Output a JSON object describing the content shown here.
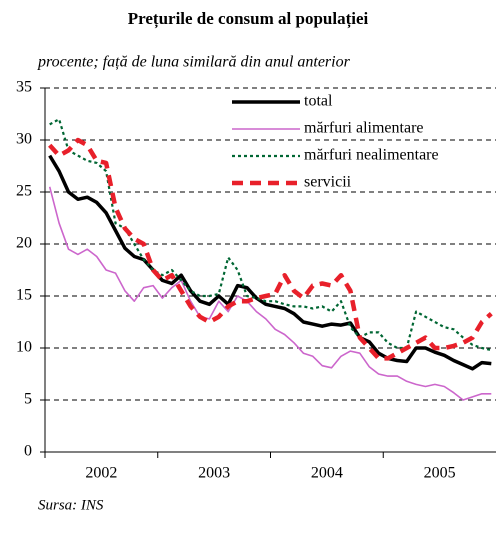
{
  "chart_data": {
    "type": "line",
    "title": "Prețurile de consum al populației",
    "subtitle": "procente; față de luna similară din anul anterior",
    "source": "Sursa: INS",
    "categories": [
      null,
      null,
      null,
      null,
      null,
      "2002",
      null,
      null,
      null,
      null,
      null,
      null,
      null,
      null,
      null,
      null,
      null,
      "2003",
      null,
      null,
      null,
      null,
      null,
      null,
      null,
      null,
      null,
      null,
      null,
      "2004",
      null,
      null,
      null,
      null,
      null,
      null,
      null,
      null,
      null,
      null,
      null,
      "2005",
      null,
      null,
      null,
      null,
      null,
      null
    ],
    "ylim": [
      0,
      35
    ],
    "yticks": [
      0,
      5,
      10,
      15,
      20,
      25,
      30,
      35
    ],
    "grid": true,
    "series": [
      {
        "name": "total",
        "color": "#000000",
        "style": "solid",
        "values": [
          28.5,
          27,
          25,
          24.3,
          24.5,
          24,
          23,
          21.3,
          19.6,
          18.8,
          18.5,
          17.5,
          16.5,
          16.2,
          17,
          15.5,
          14.5,
          14.2,
          15,
          14.2,
          16,
          15.8,
          14.8,
          14.2,
          14,
          13.8,
          13.3,
          12.5,
          12.3,
          12.1,
          12.3,
          12.2,
          12.4,
          11,
          10.6,
          9.5,
          9,
          8.8,
          8.7,
          10,
          10,
          9.6,
          9.3,
          8.8,
          8.4,
          8,
          8.6,
          8.5
        ]
      },
      {
        "name": "mărfuri alimentare",
        "color": "#cc66cc",
        "style": "solid",
        "values": [
          25.5,
          22,
          19.5,
          19,
          19.5,
          18.8,
          17.5,
          17.2,
          15.5,
          14.5,
          15.8,
          16,
          14.8,
          15.8,
          16.5,
          14.5,
          13,
          12.8,
          14.5,
          13.5,
          15,
          14.5,
          13.5,
          12.8,
          11.8,
          11.3,
          10.5,
          9.5,
          9.2,
          8.3,
          8.1,
          9.2,
          9.7,
          9.5,
          8.2,
          7.5,
          7.3,
          7.3,
          6.8,
          6.5,
          6.3,
          6.5,
          6.3,
          5.7,
          5,
          5.3,
          5.6,
          5.6
        ]
      },
      {
        "name": "mărfuri nealimentare",
        "color": "#006633",
        "style": "dotted",
        "values": [
          31.5,
          32,
          29,
          28.5,
          28,
          27.8,
          27,
          22,
          21.5,
          20,
          18.5,
          17.5,
          17,
          17.5,
          16.5,
          15.5,
          15,
          15,
          15.2,
          18.7,
          17.5,
          15,
          14.8,
          14.5,
          14.5,
          14.2,
          14,
          14,
          13.8,
          14,
          13.5,
          14.5,
          12,
          11,
          11.5,
          11.5,
          10.5,
          10,
          10,
          13.5,
          13,
          12.5,
          12,
          11.8,
          11,
          10.3,
          10,
          9.8
        ]
      },
      {
        "name": "servicii",
        "color": "#e8202a",
        "style": "dashed",
        "values": [
          29.5,
          28.5,
          29,
          30,
          29.5,
          28,
          27.8,
          23.5,
          21.5,
          20.5,
          20,
          17.5,
          16.5,
          17,
          15.5,
          14,
          13,
          12.5,
          13,
          14,
          14.5,
          14.5,
          14.8,
          15,
          15.2,
          17,
          15.5,
          14.8,
          16,
          16.2,
          16,
          17,
          15.5,
          11,
          10,
          9,
          9,
          9.5,
          10,
          10.5,
          11,
          10,
          10,
          10.2,
          10.5,
          11,
          12.5,
          13.3
        ]
      }
    ]
  }
}
